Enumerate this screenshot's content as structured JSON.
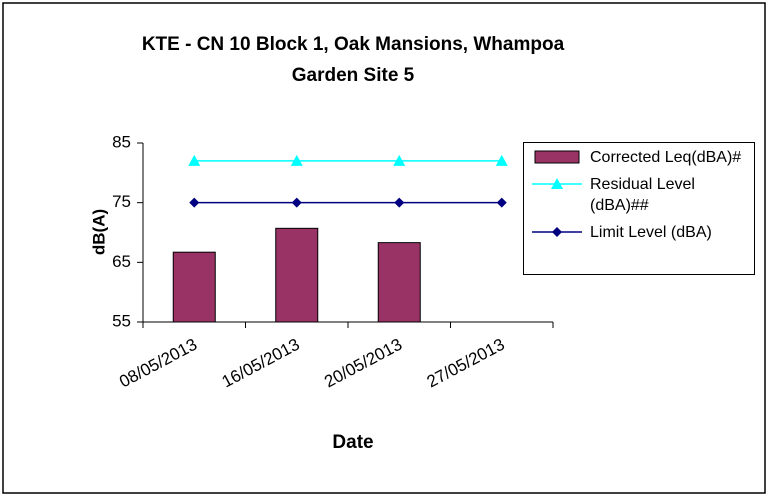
{
  "chart_data": {
    "type": "bar-line",
    "title": [
      "KTE - CN 10 Block 1, Oak Mansions, Whampoa",
      "Garden Site 5"
    ],
    "x_label": "Date",
    "y_label": "dB(A)",
    "categories": [
      "08/05/2013",
      "16/05/2013",
      "20/05/2013",
      "27/05/2013"
    ],
    "series": [
      {
        "name": "Corrected Leq(dBA)#",
        "type": "bar",
        "color": "#993366",
        "values": [
          66.7,
          70.7,
          68.3,
          null
        ]
      },
      {
        "name": "Residual Level (dBA)##",
        "type": "line",
        "marker": "triangle",
        "color": "#00ffff",
        "values": [
          82,
          82,
          82,
          82
        ]
      },
      {
        "name": "Limit Level (dBA)",
        "type": "line",
        "marker": "diamond",
        "color": "#000080",
        "values": [
          75,
          75,
          75,
          75
        ]
      }
    ],
    "ylim": [
      55,
      85
    ],
    "yticks": [
      55,
      65,
      75,
      85
    ],
    "legend": "right"
  }
}
